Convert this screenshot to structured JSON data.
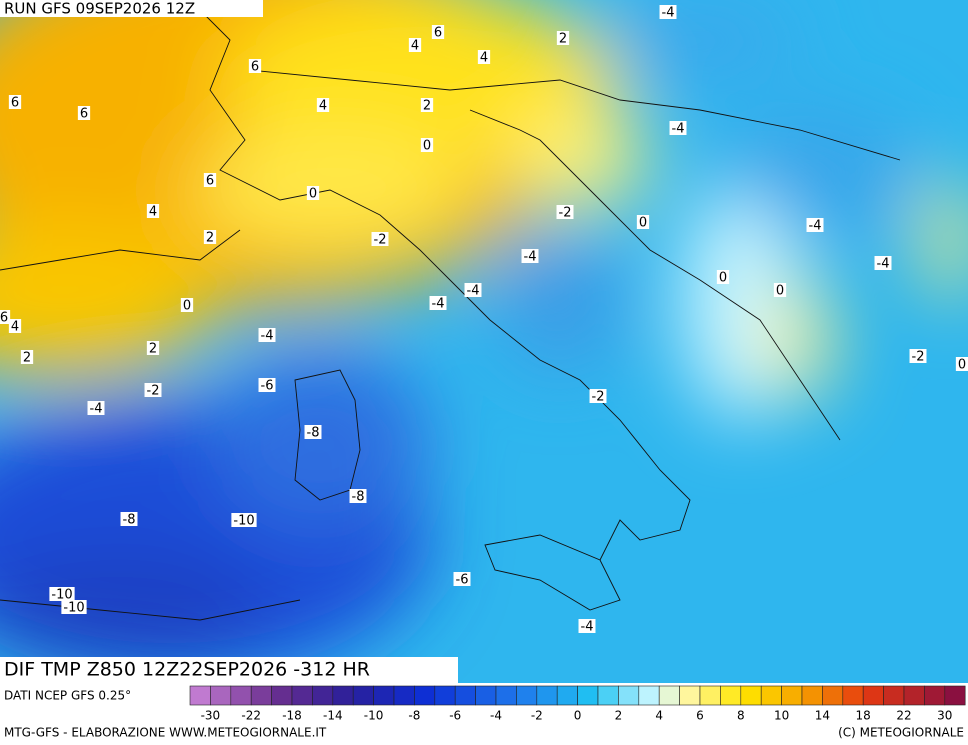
{
  "header": {
    "run": "RUN GFS 09SEP2026 12Z"
  },
  "title": "DIF TMP Z850 12Z22SEP2026 -312 HR",
  "source": "DATI NCEP GFS 0.25°",
  "contour_labels": [
    -4,
    6,
    4,
    2,
    4,
    6,
    6,
    6,
    4,
    2,
    -4,
    0,
    6,
    4,
    0,
    -2,
    0,
    -4,
    2,
    -2,
    -4,
    -4,
    0,
    0,
    -4,
    -4,
    0,
    6,
    4,
    -4,
    2,
    -2,
    0,
    2,
    -6,
    -2,
    -2,
    -4,
    -8,
    -8,
    -8,
    -10,
    -6,
    -10,
    -10,
    -4
  ],
  "colorbar": {
    "ticks": [
      -30,
      -22,
      -18,
      -14,
      -10,
      -8,
      -6,
      -4,
      -2,
      0,
      2,
      4,
      6,
      8,
      10,
      14,
      18,
      22,
      30
    ]
  },
  "footer": {
    "left": "MTG-GFS - ELABORAZIONE WWW.METEOGIORNALE.IT",
    "right": "(C) METEOGIORNALE"
  }
}
